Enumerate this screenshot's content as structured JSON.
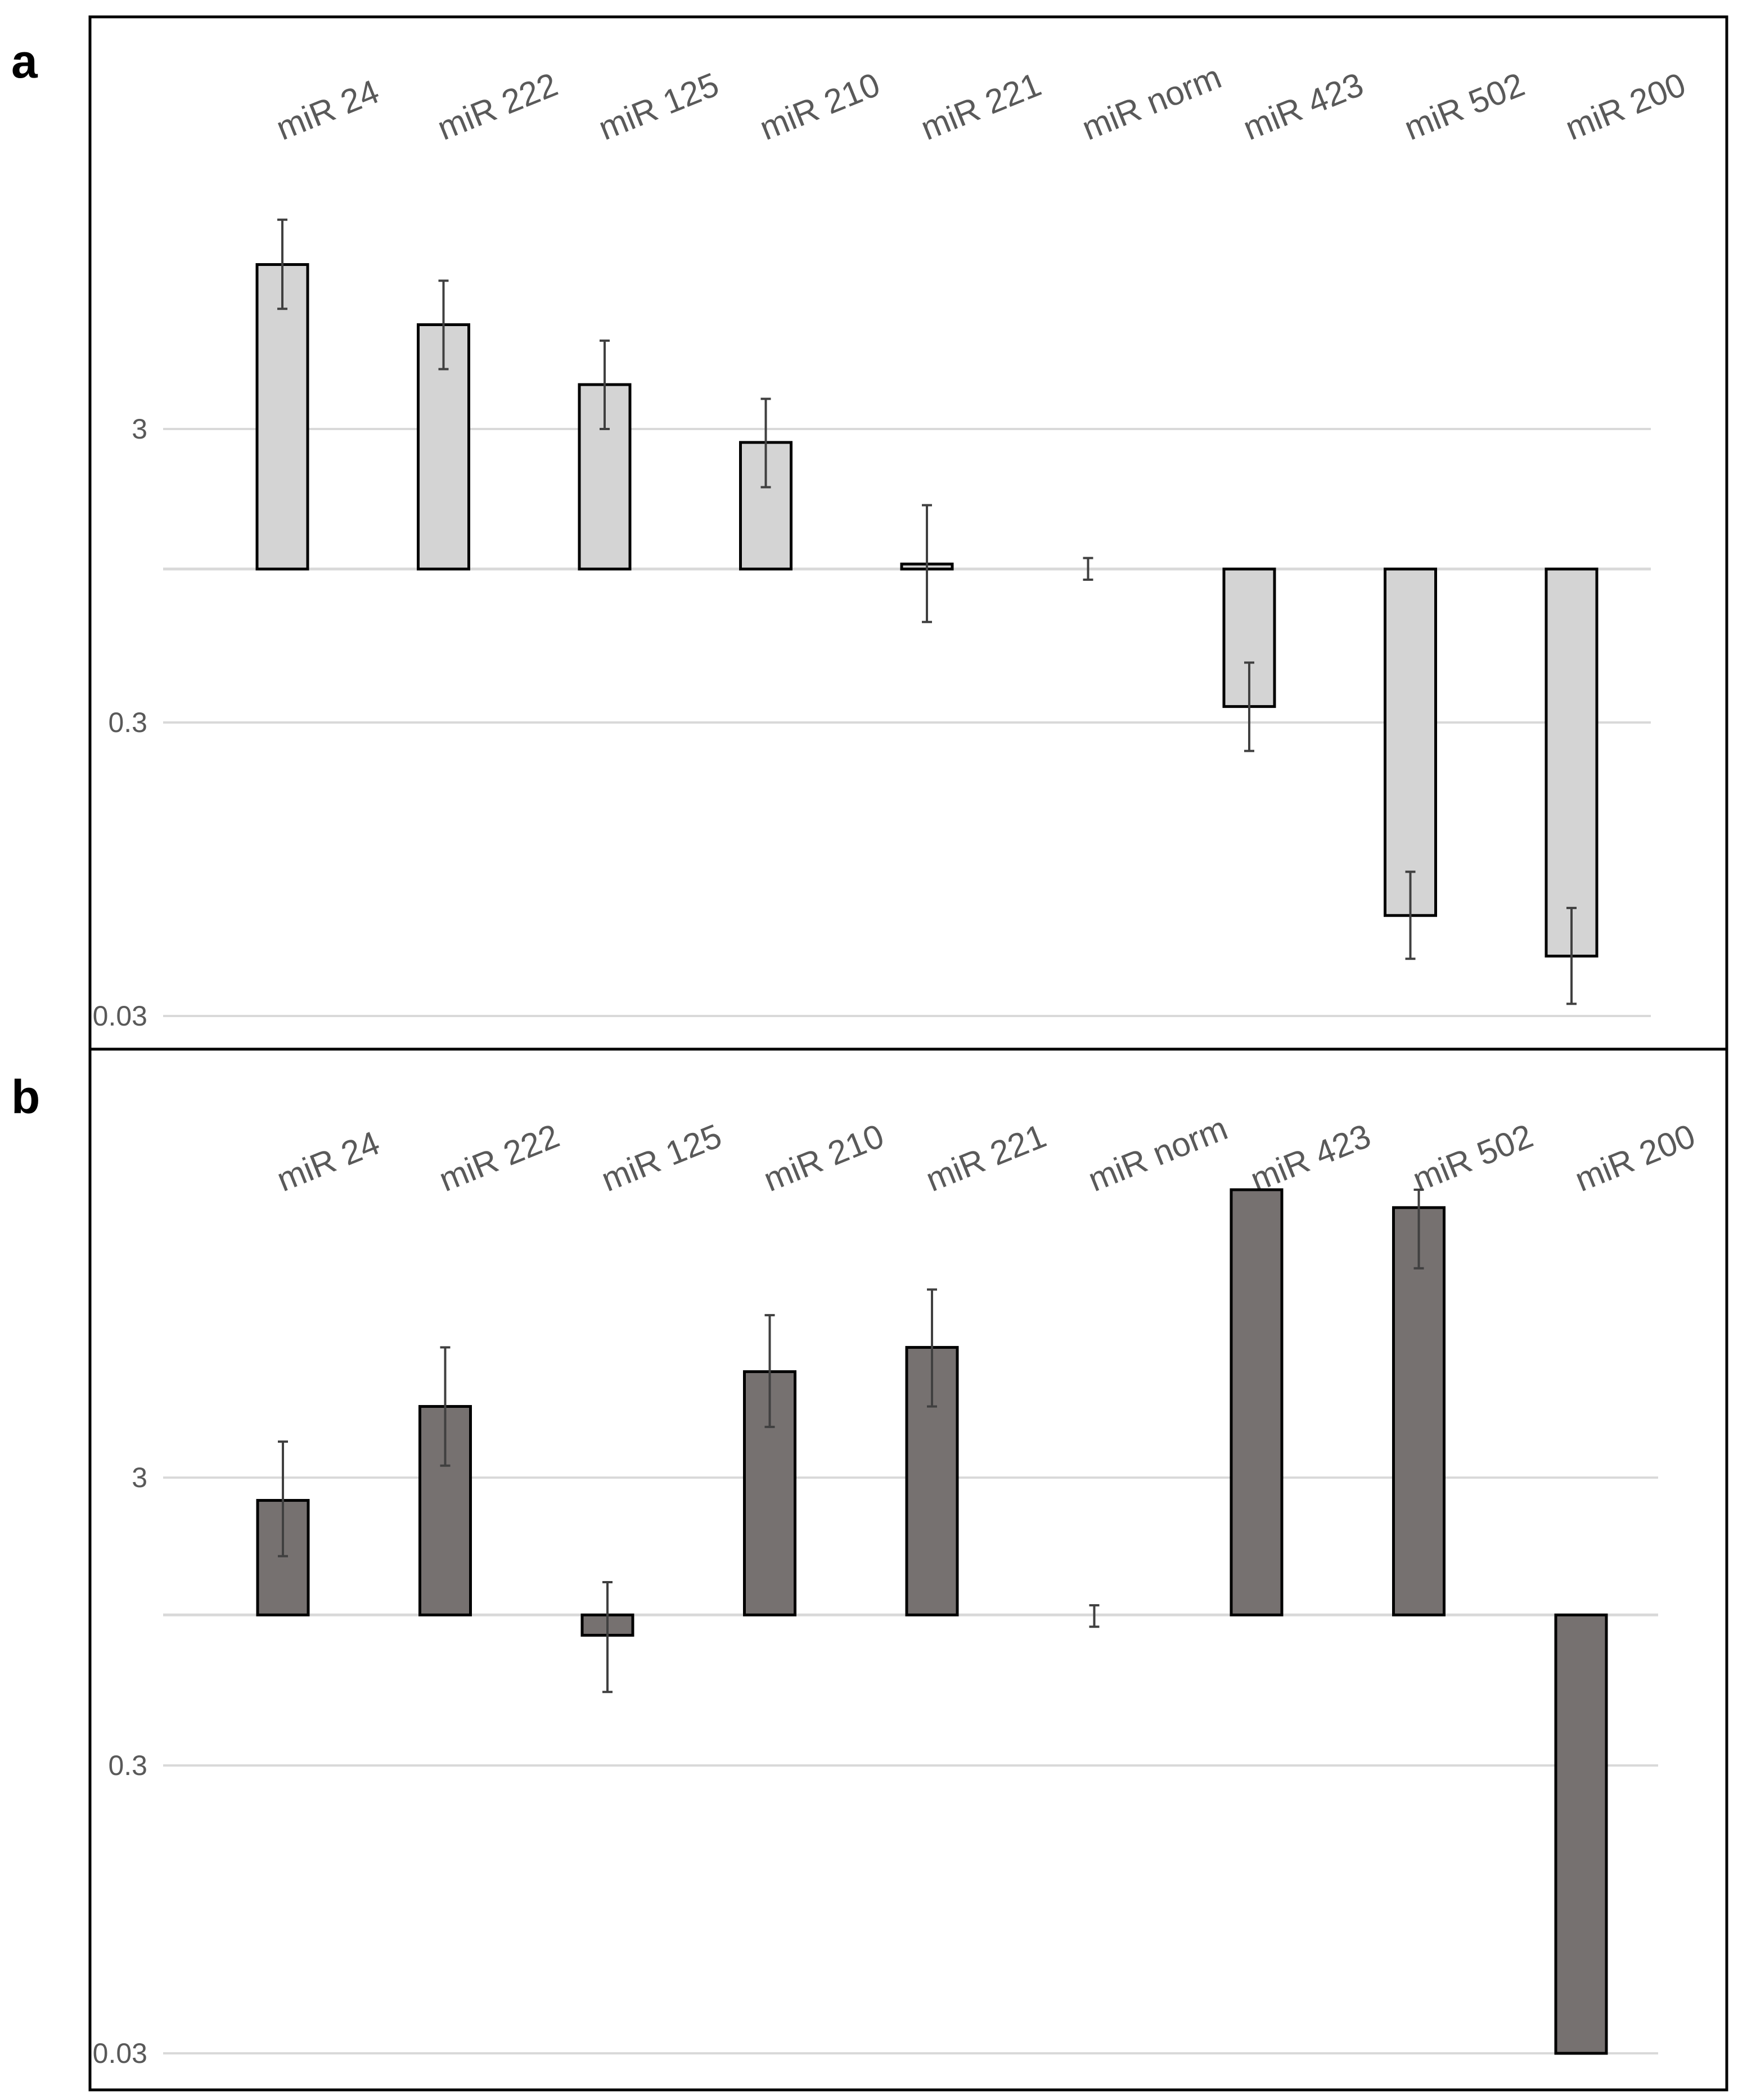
{
  "colors": {
    "panel_a_bar": "#d4d4d4",
    "panel_b_bar": "#767170",
    "gridline": "#d9d9d9",
    "axis_text": "#595959",
    "error_bar": "#404040"
  },
  "chart_data": [
    {
      "type": "bar",
      "panel_label": "a",
      "title": "",
      "xlabel": "",
      "ylabel": "",
      "y_scale": "log",
      "y_baseline": 1,
      "ylim": [
        0.03,
        30
      ],
      "y_ticks": [
        0.03,
        0.3,
        3
      ],
      "y_tick_labels": [
        "0.03",
        "0.3",
        "3"
      ],
      "categories": [
        "miR 24",
        "miR 222",
        "miR 125",
        "miR 210",
        "miR 221",
        "miR norm",
        "miR 423",
        "miR 502",
        "miR 200"
      ],
      "series": [
        {
          "name": "a",
          "values": [
            10.9,
            6.8,
            4.25,
            2.7,
            1.04,
            1.0,
            0.34,
            0.066,
            0.048
          ],
          "error_low": [
            7.7,
            4.8,
            3.0,
            1.9,
            0.66,
            0.92,
            0.24,
            0.047,
            0.033
          ],
          "error_high": [
            15.5,
            9.6,
            6.0,
            3.8,
            1.65,
            1.09,
            0.48,
            0.093,
            0.07
          ]
        }
      ]
    },
    {
      "type": "bar",
      "panel_label": "b",
      "title": "",
      "xlabel": "",
      "ylabel": "",
      "y_scale": "log",
      "y_baseline": 1,
      "ylim": [
        0.03,
        30
      ],
      "y_ticks": [
        0.03,
        0.3,
        3
      ],
      "y_tick_labels": [
        "0.03",
        "0.3",
        "3"
      ],
      "categories": [
        "miR 24",
        "miR 222",
        "miR 125",
        "miR 210",
        "miR 221",
        "miR norm",
        "miR 423",
        "miR 502",
        "miR 200"
      ],
      "series": [
        {
          "name": "b",
          "values": [
            2.5,
            5.3,
            0.85,
            7.0,
            8.5,
            1.0,
            30,
            26,
            0.03
          ],
          "error_low": [
            1.6,
            3.3,
            0.54,
            4.5,
            5.3,
            0.91,
            null,
            16.0,
            null
          ],
          "error_high": [
            4.0,
            8.5,
            1.3,
            11.0,
            13.5,
            1.08,
            null,
            30,
            null
          ]
        }
      ]
    }
  ]
}
